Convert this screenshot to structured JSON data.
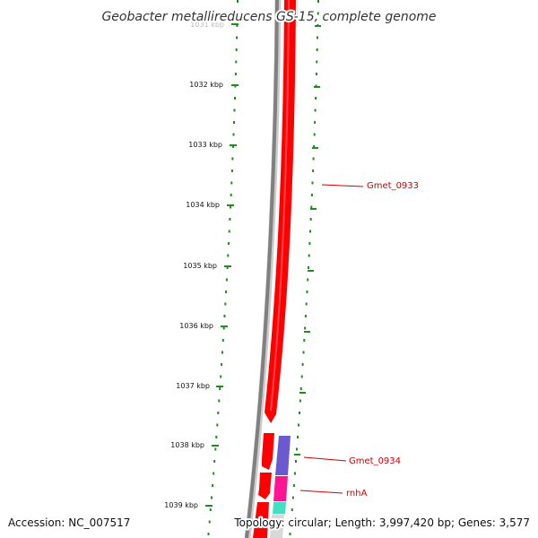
{
  "map": {
    "title": "Geobacter metallireducens GS-15, complete genome",
    "accession_text": "Accession: NC_007517",
    "summary_text": "Topology: circular; Length: 3,997,420 bp; Genes: 3,577",
    "top_tick_partial": "1031 kbp",
    "ticks": [
      "1032 kbp",
      "1033 kbp",
      "1034 kbp",
      "1035 kbp",
      "1036 kbp",
      "1037 kbp",
      "1038 kbp",
      "1039 kbp"
    ],
    "genes": [
      {
        "name": "Gmet_0933",
        "color": "#cc0000"
      },
      {
        "name": "Gmet_0934",
        "color": "#cc0000"
      },
      {
        "name": "rnhA",
        "color": "#cc0000"
      }
    ]
  },
  "colors": {
    "tick_green": "#228b22",
    "backbone_gray": "#808080",
    "cds_red": "#ff0000",
    "feature_purple": "#6a5acd",
    "feature_magenta": "#ff1493",
    "feature_aqua": "#40e0c0"
  },
  "icons": [
    "genome-backbone",
    "cds-arrow"
  ]
}
